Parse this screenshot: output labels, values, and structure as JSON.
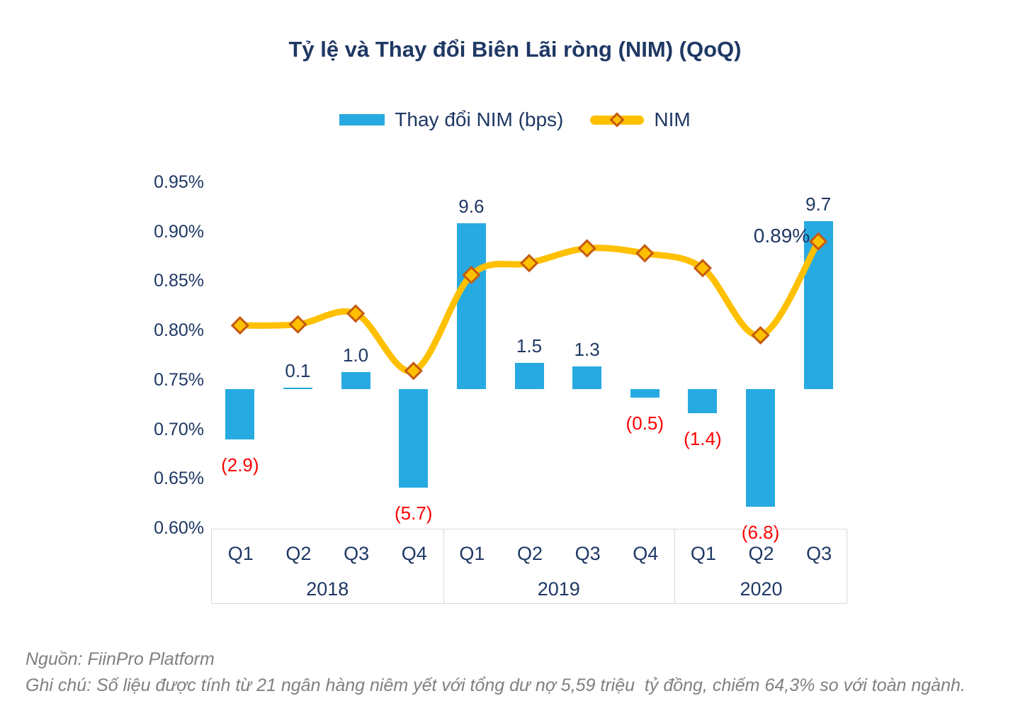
{
  "title": "Tỷ lệ và Thay đổi Biên Lãi ròng (NIM) (QoQ)",
  "legend": {
    "bar_series_label": "Thay đổi NIM (bps)",
    "line_series_label": "NIM"
  },
  "chart_data": {
    "type": "bar",
    "subtype": "combo-bar-line",
    "title": "Tỷ lệ và Thay đổi Biên Lãi ròng (NIM) (QoQ)",
    "categories": [
      "Q1",
      "Q2",
      "Q3",
      "Q4",
      "Q1",
      "Q2",
      "Q3",
      "Q4",
      "Q1",
      "Q2",
      "Q3"
    ],
    "year_groups": [
      {
        "label": "2018",
        "quarters": 4
      },
      {
        "label": "2019",
        "quarters": 4
      },
      {
        "label": "2020",
        "quarters": 3
      }
    ],
    "series": [
      {
        "name": "Thay đổi NIM (bps)",
        "type": "bar",
        "unit": "bps",
        "values": [
          -2.9,
          0.1,
          1.0,
          -5.7,
          9.6,
          1.5,
          1.3,
          -0.5,
          -1.4,
          -6.8,
          9.7
        ],
        "labels": [
          "(2.9)",
          "0.1",
          "1.0",
          "(5.7)",
          "9.6",
          "1.5",
          "1.3",
          "(0.5)",
          "(1.4)",
          "(6.8)",
          "9.7"
        ]
      },
      {
        "name": "NIM",
        "type": "line",
        "unit": "%",
        "values": [
          0.805,
          0.806,
          0.817,
          0.759,
          0.856,
          0.868,
          0.883,
          0.878,
          0.863,
          0.795,
          0.89
        ],
        "point_label": {
          "index": 10,
          "text": "0.89%"
        }
      }
    ],
    "y_axis_left": {
      "ticks": [
        "0.95%",
        "0.90%",
        "0.85%",
        "0.80%",
        "0.75%",
        "0.70%",
        "0.65%",
        "0.60%"
      ],
      "max": 0.95,
      "min": 0.6,
      "grid": false
    },
    "legend_position": "top"
  },
  "footer": {
    "source": "Nguồn: FiinPro Platform",
    "note": "Ghi chú: Số liệu được tính từ 21 ngân hàng niêm yết với tổng dư nợ 5,59 triệu  tỷ đồng, chiếm 64,3% so với toàn ngành."
  },
  "colors": {
    "bar": "#27AAE1",
    "line": "#FFC000",
    "marker_fill": "#FFC000",
    "marker_stroke": "#C55A11",
    "navy_text": "#1F3864",
    "negative_label": "#FF0000",
    "note_text": "#808080",
    "axis_box_border": "#D9D9D9"
  }
}
